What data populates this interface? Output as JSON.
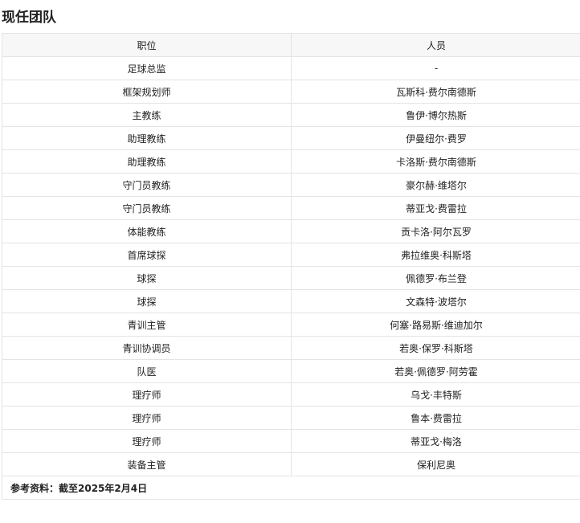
{
  "title": "现任团队",
  "table": {
    "headers": [
      "职位",
      "人员"
    ],
    "rows": [
      [
        "足球总监",
        "-"
      ],
      [
        "框架规划师",
        "瓦斯科·费尔南德斯"
      ],
      [
        "主教练",
        "鲁伊·博尔热斯"
      ],
      [
        "助理教练",
        "伊曼纽尔·费罗"
      ],
      [
        "助理教练",
        "卡洛斯·费尔南德斯"
      ],
      [
        "守门员教练",
        "豪尔赫·维塔尔"
      ],
      [
        "守门员教练",
        "蒂亚戈·费雷拉"
      ],
      [
        "体能教练",
        "贡卡洛·阿尔瓦罗"
      ],
      [
        "首席球探",
        "弗拉维奥·科斯塔"
      ],
      [
        "球探",
        "佩德罗·布兰登"
      ],
      [
        "球探",
        "文森特·波塔尔"
      ],
      [
        "青训主管",
        "何塞·路易斯·维迪加尔"
      ],
      [
        "青训协调员",
        "若奥·保罗·科斯塔"
      ],
      [
        "队医",
        "若奥·佩德罗·阿劳霍"
      ],
      [
        "理疗师",
        "乌戈·丰特斯"
      ],
      [
        "理疗师",
        "鲁本·费雷拉"
      ],
      [
        "理疗师",
        "蒂亚戈·梅洛"
      ],
      [
        "装备主管",
        "保利尼奥"
      ]
    ],
    "footer": "参考资料：截至2025年2月4日"
  }
}
